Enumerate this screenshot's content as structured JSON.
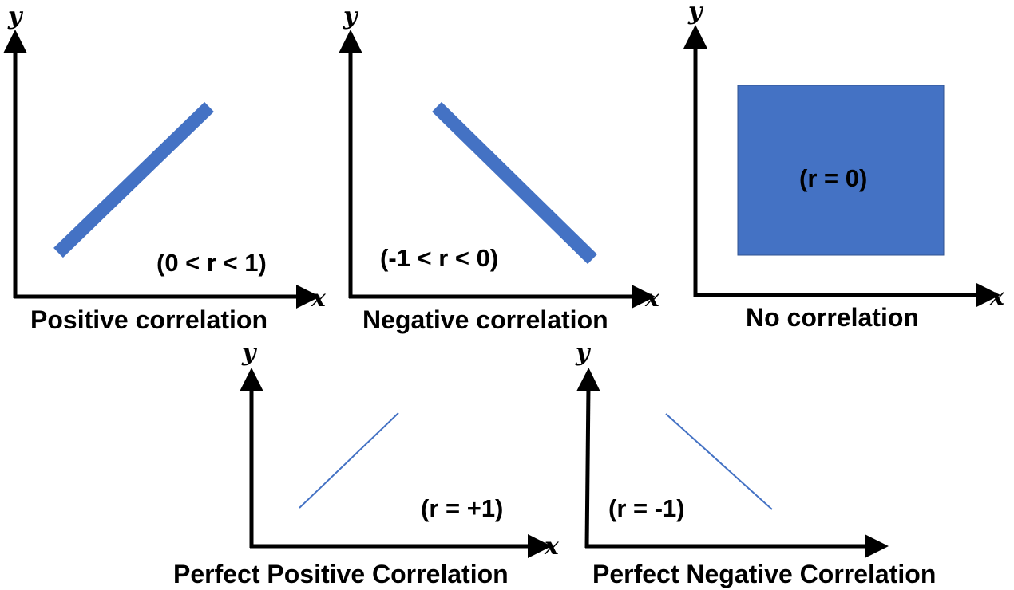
{
  "colors": {
    "blue": "#4472C4",
    "axis": "#000000",
    "background": "#ffffff"
  },
  "panels": [
    {
      "id": "positive",
      "caption": "Positive correlation",
      "r_label": "(0 < r < 1)",
      "x_axis_label": "x",
      "y_axis_label": "y",
      "mark": "thick-line-rising"
    },
    {
      "id": "negative",
      "caption": "Negative correlation",
      "r_label": "(-1 < r < 0)",
      "x_axis_label": "x",
      "y_axis_label": "y",
      "mark": "thick-line-falling"
    },
    {
      "id": "none",
      "caption": "No correlation",
      "r_label": "(r = 0)",
      "x_axis_label": "x",
      "y_axis_label": "y",
      "mark": "filled-rectangle"
    },
    {
      "id": "perfect-positive",
      "caption": "Perfect Positive Correlation",
      "r_label": "(r = +1)",
      "x_axis_label": "x",
      "y_axis_label": "y",
      "mark": "thin-line-rising"
    },
    {
      "id": "perfect-negative",
      "caption": "Perfect Negative Correlation",
      "r_label": "(r = -1)",
      "x_axis_label": "",
      "y_axis_label": "y",
      "mark": "thin-line-falling"
    }
  ]
}
